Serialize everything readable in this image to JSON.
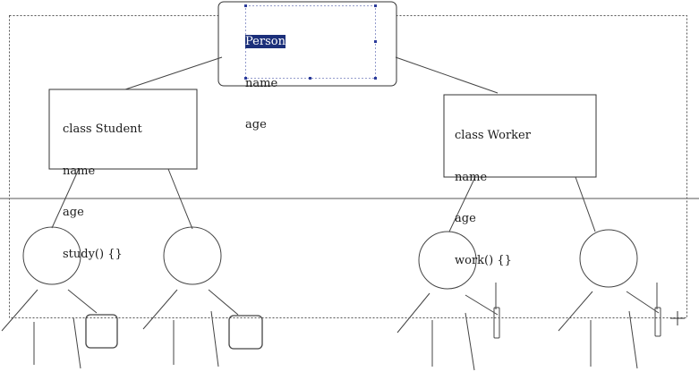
{
  "person": {
    "title": "Person",
    "fields": [
      "name",
      "age"
    ]
  },
  "student": {
    "title": "class Student",
    "fields": [
      "name",
      "age",
      "study() {}"
    ]
  },
  "worker": {
    "title": "class Worker",
    "fields": [
      "name",
      "age",
      "work() {}"
    ]
  },
  "colors": {
    "stroke": "#333333",
    "selection": "#1b2f7a",
    "selection_text": "#ffffff",
    "handle": "#2a3a9a"
  }
}
